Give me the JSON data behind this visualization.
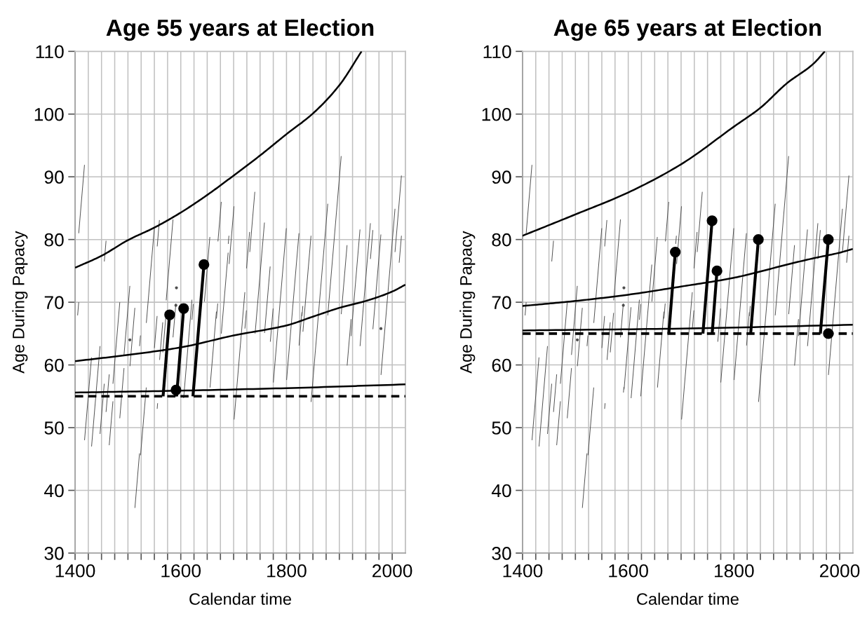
{
  "chart_data": [
    {
      "type": "line",
      "title": "Age 55 years at Election",
      "xlabel": "Calendar time",
      "ylabel": "Age During Papacy",
      "xlim": [
        1400,
        2025
      ],
      "ylim": [
        30,
        110
      ],
      "xticks": [
        1400,
        {
          "value": 1425,
          "label": null
        },
        {
          "value": 1450,
          "label": null
        },
        {
          "value": 1475,
          "label": null
        },
        {
          "value": 1500,
          "label": null
        },
        {
          "value": 1525,
          "label": null
        },
        {
          "value": 1550,
          "label": null
        },
        {
          "value": 1575,
          "label": null
        },
        1600,
        {
          "value": 1625,
          "label": null
        },
        {
          "value": 1650,
          "label": null
        },
        {
          "value": 1675,
          "label": null
        },
        {
          "value": 1700,
          "label": null
        },
        {
          "value": 1725,
          "label": null
        },
        {
          "value": 1750,
          "label": null
        },
        {
          "value": 1775,
          "label": null
        },
        1800,
        {
          "value": 1825,
          "label": null
        },
        {
          "value": 1850,
          "label": null
        },
        {
          "value": 1875,
          "label": null
        },
        {
          "value": 1900,
          "label": null
        },
        {
          "value": 1925,
          "label": null
        },
        {
          "value": 1950,
          "label": null
        },
        {
          "value": 1975,
          "label": null
        },
        2000
      ],
      "yticks": [
        30,
        40,
        50,
        60,
        70,
        80,
        90,
        100,
        110
      ],
      "grid": true,
      "ref_lines": [
        {
          "axis": "y",
          "value": 55,
          "color": "#000000",
          "line_style": "dashed"
        }
      ],
      "series": [
        {
          "color": "#4d4d4d",
          "x": [
            1404.8,
            1406.9
          ],
          "values": [
            67.9,
            70.0
          ]
        },
        {
          "color": "#4d4d4d",
          "x": [
            1406.9,
            1417.8
          ],
          "values": [
            81.0,
            91.9
          ]
        },
        {
          "color": "#4d4d4d",
          "x": [
            1417.9,
            1431.1
          ],
          "values": [
            48.0,
            61.2
          ]
        },
        {
          "color": "#4d4d4d",
          "x": [
            1431.2,
            1447.2
          ],
          "values": [
            47.0,
            63.0
          ]
        },
        {
          "color": "#4d4d4d",
          "x": [
            1447.2,
            1455.2
          ],
          "values": [
            49.0,
            57.0
          ]
        },
        {
          "color": "#4d4d4d",
          "x": [
            1455.3,
            1458.6
          ],
          "values": [
            76.5,
            79.8
          ]
        },
        {
          "color": "#4d4d4d",
          "x": [
            1458.6,
            1464.6
          ],
          "values": [
            52.5,
            58.5
          ]
        },
        {
          "color": "#4d4d4d",
          "x": [
            1464.6,
            1471.6
          ],
          "values": [
            47.2,
            54.2
          ]
        },
        {
          "color": "#4d4d4d",
          "x": [
            1471.6,
            1484.6
          ],
          "values": [
            57.0,
            70.0
          ]
        },
        {
          "color": "#4d4d4d",
          "x": [
            1484.6,
            1492.6
          ],
          "values": [
            51.5,
            59.5
          ]
        },
        {
          "color": "#4d4d4d",
          "x": [
            1492.6,
            1503.6
          ],
          "values": [
            61.6,
            72.6
          ]
        },
        {
          "color": "#4d4d4d",
          "marker": "circle",
          "x": [
            1503.7
          ],
          "values": [
            64.0
          ]
        },
        {
          "color": "#4d4d4d",
          "x": [
            1503.8,
            1513.1
          ],
          "values": [
            59.8,
            69.1
          ]
        },
        {
          "color": "#4d4d4d",
          "x": [
            1513.2,
            1521.9
          ],
          "values": [
            37.2,
            45.9
          ]
        },
        {
          "color": "#4d4d4d",
          "x": [
            1522.0,
            1523.7
          ],
          "values": [
            63.0,
            64.7
          ]
        },
        {
          "color": "#4d4d4d",
          "x": [
            1523.9,
            1534.7
          ],
          "values": [
            45.6,
            56.4
          ]
        },
        {
          "color": "#4d4d4d",
          "x": [
            1534.8,
            1549.9
          ],
          "values": [
            66.7,
            81.8
          ]
        },
        {
          "color": "#4d4d4d",
          "x": [
            1550.1,
            1555.2
          ],
          "values": [
            62.7,
            67.8
          ]
        },
        {
          "color": "#4d4d4d",
          "x": [
            1555.3,
            1556.2
          ],
          "values": [
            53.0,
            53.9
          ]
        },
        {
          "color": "#4d4d4d",
          "x": [
            1555.4,
            1559.6
          ],
          "values": [
            78.9,
            83.1
          ]
        },
        {
          "color": "#4d4d4d",
          "x": [
            1559.9,
            1565.9
          ],
          "values": [
            60.8,
            66.8
          ]
        },
        {
          "color": "#4d4d4d",
          "x": [
            1566.0,
            1572.3
          ],
          "values": [
            62.0,
            68.3
          ]
        },
        {
          "color": "#4d4d4d",
          "x": [
            1572.4,
            1585.3
          ],
          "values": [
            70.3,
            83.2
          ]
        },
        {
          "color": "#4d4d4d",
          "x": [
            1585.3,
            1590.7
          ],
          "values": [
            64.4,
            69.8
          ]
        },
        {
          "color": "#4d4d4d",
          "marker": "circle",
          "x": [
            1590.7
          ],
          "values": [
            69.5
          ]
        },
        {
          "color": "#4d4d4d",
          "marker": "circle",
          "x": [
            1591.8
          ],
          "values": [
            72.3
          ]
        },
        {
          "color": "#4d4d4d",
          "x": [
            1605.4,
            1621.1
          ],
          "values": [
            54.7,
            70.4
          ]
        },
        {
          "color": "#4d4d4d",
          "x": [
            1621.1,
            1623.6
          ],
          "values": [
            67.2,
            69.7
          ]
        },
        {
          "color": "#4d4d4d",
          "x": [
            1644.7,
            1655.0
          ],
          "values": [
            70.1,
            80.4
          ]
        },
        {
          "color": "#4d4d4d",
          "x": [
            1655.3,
            1667.4
          ],
          "values": [
            56.4,
            68.5
          ]
        },
        {
          "color": "#4d4d4d",
          "x": [
            1667.5,
            1669.9
          ],
          "values": [
            67.4,
            69.8
          ]
        },
        {
          "color": "#4d4d4d",
          "x": [
            1670.3,
            1676.6
          ],
          "values": [
            79.7,
            86.0
          ]
        },
        {
          "color": "#4d4d4d",
          "x": [
            1676.7,
            1689.6
          ],
          "values": [
            65.0,
            77.9
          ]
        },
        {
          "color": "#4d4d4d",
          "x": [
            1689.8,
            1691.1
          ],
          "values": [
            79.3,
            80.6
          ]
        },
        {
          "color": "#4d4d4d",
          "x": [
            1691.5,
            1700.7
          ],
          "values": [
            76.1,
            85.3
          ]
        },
        {
          "color": "#4d4d4d",
          "x": [
            1700.9,
            1721.2
          ],
          "values": [
            51.3,
            71.6
          ]
        },
        {
          "color": "#4d4d4d",
          "x": [
            1721.3,
            1724.2
          ],
          "values": [
            65.8,
            68.7
          ]
        },
        {
          "color": "#4d4d4d",
          "x": [
            1724.4,
            1730.2
          ],
          "values": [
            75.4,
            81.2
          ]
        },
        {
          "color": "#4d4d4d",
          "x": [
            1730.5,
            1740.1
          ],
          "values": [
            78.0,
            87.6
          ]
        },
        {
          "color": "#4d4d4d",
          "x": [
            1740.6,
            1758.3
          ],
          "values": [
            65.0,
            82.7
          ]
        },
        {
          "color": "#4d4d4d",
          "x": [
            1758.5,
            1769.1
          ],
          "values": [
            65.1,
            75.7
          ]
        },
        {
          "color": "#4d4d4d",
          "x": [
            1769.4,
            1774.7
          ],
          "values": [
            63.7,
            69.0
          ]
        },
        {
          "color": "#4d4d4d",
          "x": [
            1775.1,
            1799.7
          ],
          "values": [
            57.2,
            81.8
          ]
        },
        {
          "color": "#4d4d4d",
          "x": [
            1800.2,
            1823.6
          ],
          "values": [
            57.6,
            81.0
          ]
        },
        {
          "color": "#4d4d4d",
          "x": [
            1823.8,
            1829.1
          ],
          "values": [
            63.1,
            68.4
          ]
        },
        {
          "color": "#4d4d4d",
          "x": [
            1829.3,
            1830.9
          ],
          "values": [
            67.8,
            69.4
          ]
        },
        {
          "color": "#4d4d4d",
          "x": [
            1831.1,
            1846.4
          ],
          "values": [
            65.3,
            80.6
          ]
        },
        {
          "color": "#4d4d4d",
          "x": [
            1846.5,
            1878.1
          ],
          "values": [
            54.1,
            85.7
          ]
        },
        {
          "color": "#4d4d4d",
          "x": [
            1878.1,
            1903.5
          ],
          "values": [
            67.9,
            93.3
          ]
        },
        {
          "color": "#4d4d4d",
          "x": [
            1903.6,
            1914.6
          ],
          "values": [
            68.1,
            79.1
          ]
        },
        {
          "color": "#4d4d4d",
          "x": [
            1914.7,
            1922.1
          ],
          "values": [
            59.9,
            67.3
          ]
        },
        {
          "color": "#4d4d4d",
          "x": [
            1922.1,
            1939.1
          ],
          "values": [
            64.6,
            81.6
          ]
        },
        {
          "color": "#4d4d4d",
          "x": [
            1939.2,
            1958.8
          ],
          "values": [
            63.0,
            82.6
          ]
        },
        {
          "color": "#4d4d4d",
          "x": [
            1958.8,
            1963.4
          ],
          "values": [
            76.9,
            81.5
          ]
        },
        {
          "color": "#4d4d4d",
          "x": [
            1963.5,
            1978.6
          ],
          "values": [
            65.7,
            80.8
          ]
        },
        {
          "color": "#4d4d4d",
          "marker": "circle",
          "x": [
            1978.7
          ],
          "values": [
            65.8
          ]
        },
        {
          "color": "#4d4d4d",
          "x": [
            1978.8,
            2005.3
          ],
          "values": [
            58.4,
            84.9
          ]
        },
        {
          "color": "#4d4d4d",
          "x": [
            2005.3,
            2017.5
          ],
          "values": [
            78.0,
            90.2
          ]
        },
        {
          "color": "#4d4d4d",
          "x": [
            2013.2,
            2017.5
          ],
          "values": [
            76.3,
            80.6
          ]
        },
        {
          "color": "#000000",
          "x": [
            1400,
            1450,
            1500,
            1550,
            1600,
            1650,
            1700,
            1750,
            1800,
            1850,
            1900,
            1942
          ],
          "values": [
            75.5,
            77.4,
            79.9,
            81.9,
            84.3,
            87.1,
            90.2,
            93.4,
            96.8,
            100.1,
            104.6,
            110
          ]
        },
        {
          "color": "#000000",
          "x": [
            1400,
            1500,
            1600,
            1700,
            1800,
            1850,
            1900,
            1950,
            2000,
            2025
          ],
          "values": [
            60.6,
            61.6,
            62.8,
            64.7,
            66.3,
            67.7,
            69.1,
            70.2,
            71.7,
            72.8
          ]
        },
        {
          "color": "#000000",
          "x": [
            1400,
            1600,
            1800,
            2025
          ],
          "values": [
            55.6,
            55.9,
            56.3,
            56.9
          ]
        },
        {
          "color": "#000000",
          "marker": "circle",
          "x": [
            1566.5,
            1578.9
          ],
          "values": [
            55,
            68
          ]
        },
        {
          "color": "#000000",
          "marker": "circle",
          "x": [
            1590.0,
            1590.9
          ],
          "values": [
            55,
            56
          ]
        },
        {
          "color": "#000000",
          "marker": "circle",
          "x": [
            1592.1,
            1605.4
          ],
          "values": [
            55,
            69
          ]
        },
        {
          "color": "#000000",
          "marker": "circle",
          "x": [
            1623.0,
            1643.8
          ],
          "values": [
            55,
            76
          ]
        }
      ]
    },
    {
      "type": "line",
      "title": "Age 65 years at Election",
      "xlabel": "Calendar time",
      "ylabel": "Age During Papacy",
      "xlim": [
        1400,
        2025
      ],
      "ylim": [
        30,
        110
      ],
      "xticks": [
        1400,
        {
          "value": 1425,
          "label": null
        },
        {
          "value": 1450,
          "label": null
        },
        {
          "value": 1475,
          "label": null
        },
        {
          "value": 1500,
          "label": null
        },
        {
          "value": 1525,
          "label": null
        },
        {
          "value": 1550,
          "label": null
        },
        {
          "value": 1575,
          "label": null
        },
        1600,
        {
          "value": 1625,
          "label": null
        },
        {
          "value": 1650,
          "label": null
        },
        {
          "value": 1675,
          "label": null
        },
        {
          "value": 1700,
          "label": null
        },
        {
          "value": 1725,
          "label": null
        },
        {
          "value": 1750,
          "label": null
        },
        {
          "value": 1775,
          "label": null
        },
        1800,
        {
          "value": 1825,
          "label": null
        },
        {
          "value": 1850,
          "label": null
        },
        {
          "value": 1875,
          "label": null
        },
        {
          "value": 1900,
          "label": null
        },
        {
          "value": 1925,
          "label": null
        },
        {
          "value": 1950,
          "label": null
        },
        {
          "value": 1975,
          "label": null
        },
        2000
      ],
      "yticks": [
        30,
        40,
        50,
        60,
        70,
        80,
        90,
        100,
        110
      ],
      "grid": true,
      "ref_lines": [
        {
          "axis": "y",
          "value": 65,
          "color": "#000000",
          "line_style": "dashed"
        }
      ],
      "series": [
        {
          "color": "#4d4d4d",
          "x": [
            1404.8,
            1406.9
          ],
          "values": [
            67.9,
            70.0
          ]
        },
        {
          "color": "#4d4d4d",
          "x": [
            1406.9,
            1417.8
          ],
          "values": [
            81.0,
            91.9
          ]
        },
        {
          "color": "#4d4d4d",
          "x": [
            1417.9,
            1431.1
          ],
          "values": [
            48.0,
            61.2
          ]
        },
        {
          "color": "#4d4d4d",
          "x": [
            1431.2,
            1447.2
          ],
          "values": [
            47.0,
            63.0
          ]
        },
        {
          "color": "#4d4d4d",
          "x": [
            1447.2,
            1455.2
          ],
          "values": [
            49.0,
            57.0
          ]
        },
        {
          "color": "#4d4d4d",
          "x": [
            1455.3,
            1458.6
          ],
          "values": [
            76.5,
            79.8
          ]
        },
        {
          "color": "#4d4d4d",
          "x": [
            1458.6,
            1464.6
          ],
          "values": [
            52.5,
            58.5
          ]
        },
        {
          "color": "#4d4d4d",
          "x": [
            1464.6,
            1471.6
          ],
          "values": [
            47.2,
            54.2
          ]
        },
        {
          "color": "#4d4d4d",
          "x": [
            1471.6,
            1484.6
          ],
          "values": [
            57.0,
            70.0
          ]
        },
        {
          "color": "#4d4d4d",
          "x": [
            1484.6,
            1492.6
          ],
          "values": [
            51.5,
            59.5
          ]
        },
        {
          "color": "#4d4d4d",
          "x": [
            1492.6,
            1503.6
          ],
          "values": [
            61.6,
            72.6
          ]
        },
        {
          "color": "#4d4d4d",
          "marker": "circle",
          "x": [
            1503.7
          ],
          "values": [
            64.0
          ]
        },
        {
          "color": "#4d4d4d",
          "x": [
            1503.8,
            1513.1
          ],
          "values": [
            59.8,
            69.1
          ]
        },
        {
          "color": "#4d4d4d",
          "x": [
            1513.2,
            1521.9
          ],
          "values": [
            37.2,
            45.9
          ]
        },
        {
          "color": "#4d4d4d",
          "x": [
            1522.0,
            1523.7
          ],
          "values": [
            63.0,
            64.7
          ]
        },
        {
          "color": "#4d4d4d",
          "x": [
            1523.9,
            1534.7
          ],
          "values": [
            45.6,
            56.4
          ]
        },
        {
          "color": "#4d4d4d",
          "x": [
            1534.8,
            1549.9
          ],
          "values": [
            66.7,
            81.8
          ]
        },
        {
          "color": "#4d4d4d",
          "x": [
            1550.1,
            1555.2
          ],
          "values": [
            62.7,
            67.8
          ]
        },
        {
          "color": "#4d4d4d",
          "x": [
            1555.3,
            1556.2
          ],
          "values": [
            53.0,
            53.9
          ]
        },
        {
          "color": "#4d4d4d",
          "x": [
            1555.4,
            1559.6
          ],
          "values": [
            78.9,
            83.1
          ]
        },
        {
          "color": "#4d4d4d",
          "x": [
            1559.9,
            1565.9
          ],
          "values": [
            60.8,
            66.8
          ]
        },
        {
          "color": "#4d4d4d",
          "x": [
            1566.0,
            1572.3
          ],
          "values": [
            62.0,
            68.3
          ]
        },
        {
          "color": "#4d4d4d",
          "x": [
            1572.4,
            1585.3
          ],
          "values": [
            70.3,
            83.2
          ]
        },
        {
          "color": "#4d4d4d",
          "x": [
            1585.3,
            1590.7
          ],
          "values": [
            64.4,
            69.8
          ]
        },
        {
          "color": "#4d4d4d",
          "marker": "circle",
          "x": [
            1590.7
          ],
          "values": [
            69.5
          ]
        },
        {
          "color": "#4d4d4d",
          "x": [
            1590.9,
            1591.8
          ],
          "values": [
            55.6,
            56.5
          ]
        },
        {
          "color": "#4d4d4d",
          "marker": "circle",
          "x": [
            1591.8
          ],
          "values": [
            72.3
          ]
        },
        {
          "color": "#4d4d4d",
          "x": [
            1592.1,
            1605.2
          ],
          "values": [
            56.1,
            69.2
          ]
        },
        {
          "color": "#4d4d4d",
          "x": [
            1605.4,
            1621.1
          ],
          "values": [
            54.7,
            70.4
          ]
        },
        {
          "color": "#4d4d4d",
          "x": [
            1621.1,
            1623.6
          ],
          "values": [
            67.2,
            69.7
          ]
        },
        {
          "color": "#4d4d4d",
          "x": [
            1623.6,
            1644.6
          ],
          "values": [
            55.0,
            76.0
          ]
        },
        {
          "color": "#4d4d4d",
          "x": [
            1644.7,
            1655.0
          ],
          "values": [
            70.1,
            80.4
          ]
        },
        {
          "color": "#4d4d4d",
          "x": [
            1655.3,
            1667.4
          ],
          "values": [
            56.4,
            68.5
          ]
        },
        {
          "color": "#4d4d4d",
          "x": [
            1667.5,
            1669.9
          ],
          "values": [
            67.4,
            69.8
          ]
        },
        {
          "color": "#4d4d4d",
          "x": [
            1670.3,
            1676.6
          ],
          "values": [
            79.7,
            86.0
          ]
        },
        {
          "color": "#4d4d4d",
          "x": [
            1689.8,
            1691.1
          ],
          "values": [
            79.3,
            80.6
          ]
        },
        {
          "color": "#4d4d4d",
          "x": [
            1691.5,
            1700.7
          ],
          "values": [
            76.1,
            85.3
          ]
        },
        {
          "color": "#4d4d4d",
          "x": [
            1700.9,
            1721.2
          ],
          "values": [
            51.3,
            71.6
          ]
        },
        {
          "color": "#4d4d4d",
          "x": [
            1721.3,
            1724.2
          ],
          "values": [
            65.8,
            68.7
          ]
        },
        {
          "color": "#4d4d4d",
          "x": [
            1724.4,
            1730.2
          ],
          "values": [
            75.4,
            81.2
          ]
        },
        {
          "color": "#4d4d4d",
          "x": [
            1730.5,
            1740.1
          ],
          "values": [
            78.0,
            87.6
          ]
        },
        {
          "color": "#4d4d4d",
          "x": [
            1769.4,
            1774.7
          ],
          "values": [
            63.7,
            69.0
          ]
        },
        {
          "color": "#4d4d4d",
          "x": [
            1775.1,
            1799.7
          ],
          "values": [
            57.2,
            81.8
          ]
        },
        {
          "color": "#4d4d4d",
          "x": [
            1800.2,
            1823.6
          ],
          "values": [
            57.6,
            81.0
          ]
        },
        {
          "color": "#4d4d4d",
          "x": [
            1823.8,
            1829.1
          ],
          "values": [
            63.1,
            68.4
          ]
        },
        {
          "color": "#4d4d4d",
          "x": [
            1829.3,
            1830.9
          ],
          "values": [
            67.8,
            69.4
          ]
        },
        {
          "color": "#4d4d4d",
          "x": [
            1846.5,
            1878.1
          ],
          "values": [
            54.1,
            85.7
          ]
        },
        {
          "color": "#4d4d4d",
          "x": [
            1878.1,
            1903.5
          ],
          "values": [
            67.9,
            93.3
          ]
        },
        {
          "color": "#4d4d4d",
          "x": [
            1903.6,
            1914.6
          ],
          "values": [
            68.1,
            79.1
          ]
        },
        {
          "color": "#4d4d4d",
          "x": [
            1914.7,
            1922.1
          ],
          "values": [
            59.9,
            67.3
          ]
        },
        {
          "color": "#4d4d4d",
          "x": [
            1922.1,
            1939.1
          ],
          "values": [
            64.6,
            81.6
          ]
        },
        {
          "color": "#4d4d4d",
          "x": [
            1939.2,
            1958.8
          ],
          "values": [
            63.0,
            82.6
          ]
        },
        {
          "color": "#4d4d4d",
          "x": [
            1958.8,
            1963.4
          ],
          "values": [
            76.9,
            81.5
          ]
        },
        {
          "color": "#4d4d4d",
          "x": [
            1978.8,
            2005.3
          ],
          "values": [
            58.4,
            84.9
          ]
        },
        {
          "color": "#4d4d4d",
          "x": [
            2005.3,
            2017.5
          ],
          "values": [
            78.0,
            90.2
          ]
        },
        {
          "color": "#4d4d4d",
          "x": [
            2013.2,
            2017.5
          ],
          "values": [
            76.3,
            80.6
          ]
        },
        {
          "color": "#000000",
          "x": [
            1400,
            1500,
            1600,
            1700,
            1800,
            1850,
            1900,
            1950,
            1972
          ],
          "values": [
            80.6,
            84.0,
            87.5,
            92.0,
            98.0,
            101.0,
            104.9,
            108.0,
            110
          ]
        },
        {
          "color": "#000000",
          "x": [
            1400,
            1500,
            1600,
            1700,
            1800,
            1850,
            1900,
            1950,
            2000,
            2025
          ],
          "values": [
            69.4,
            70.2,
            71.2,
            72.5,
            73.9,
            74.9,
            76.0,
            77.0,
            77.9,
            78.5
          ]
        },
        {
          "color": "#000000",
          "x": [
            1400,
            1700,
            2025
          ],
          "values": [
            65.5,
            65.8,
            66.4
          ]
        },
        {
          "color": "#000000",
          "marker": "circle",
          "x": [
            1676.7,
            1689.0
          ],
          "values": [
            65,
            78
          ]
        },
        {
          "color": "#000000",
          "marker": "circle",
          "x": [
            1741.3,
            1758.6
          ],
          "values": [
            65,
            83
          ]
        },
        {
          "color": "#000000",
          "marker": "circle",
          "x": [
            1758.8,
            1767.9
          ],
          "values": [
            65,
            75
          ]
        },
        {
          "color": "#000000",
          "marker": "circle",
          "x": [
            1831.6,
            1846.2
          ],
          "values": [
            65,
            80
          ]
        },
        {
          "color": "#000000",
          "marker": "circle",
          "x": [
            1963.5,
            1978.6
          ],
          "values": [
            65,
            80
          ]
        },
        {
          "color": "#000000",
          "marker": "circle",
          "x": [
            1978.6
          ],
          "values": [
            65
          ]
        }
      ]
    }
  ]
}
